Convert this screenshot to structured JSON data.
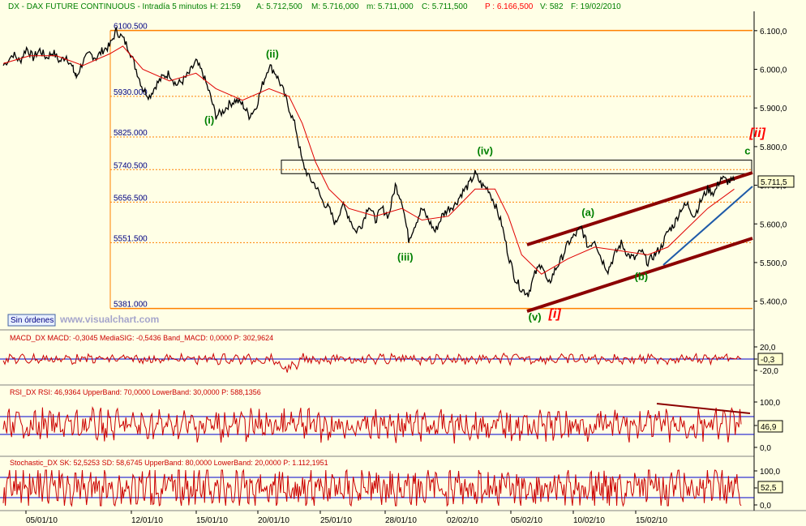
{
  "colors": {
    "background": "#FFFFE6",
    "header_text": "#008000",
    "header_red": "#FF0000",
    "fib_line": "#FF8000",
    "fib_label": "#000080",
    "wave_green": "#008000",
    "wave_red": "#FF0000",
    "channel": "#8B0000",
    "trend_blue": "#1E5AA8",
    "price": "#000000",
    "ma": "#E00000",
    "indicator_line": "#CC0000",
    "band_blue": "#0000CC",
    "last_box_bg": "#FFFFD0"
  },
  "header": {
    "symbol_line": "DX - DAX FUTURE CONTINUOUS - Intradía 5 minutos",
    "time": "H: 21:59",
    "open": "A: 5.712,500",
    "high": "M: 5.716,000",
    "low": "m: 5.711,000",
    "close": "C: 5.711,500",
    "prev": "P : 6.166,500",
    "volume": "V: 582",
    "date": "F: 19/02/2010"
  },
  "orders_label": "Sin órdenes",
  "watermark": "www.visualchart.com",
  "chart_data": [
    {
      "type": "line",
      "name": "price",
      "x": [
        "05/01/10",
        "12/01/10",
        "15/01/10",
        "20/01/10",
        "25/01/10",
        "28/01/10",
        "02/02/10",
        "05/02/10",
        "10/02/10",
        "15/02/10"
      ],
      "ylim": [
        5330,
        6150
      ],
      "y_ticks": [
        "6.100,0",
        "6.000,0",
        "5.900,0",
        "5.800,0",
        "5.700,0",
        "5.600,0",
        "5.500,0",
        "5.400,0"
      ],
      "y_tick_values": [
        6100,
        6000,
        5900,
        5800,
        5700,
        5600,
        5500,
        5400
      ],
      "last_value_label": "5.711,5",
      "last_value": 5711.5,
      "price_path": [
        [
          0,
          6010
        ],
        [
          3,
          6040
        ],
        [
          5,
          6020
        ],
        [
          7,
          6055
        ],
        [
          9,
          6030
        ],
        [
          11,
          6050
        ],
        [
          13,
          6030
        ],
        [
          15,
          6045
        ],
        [
          17,
          6020
        ],
        [
          19,
          6035
        ],
        [
          21,
          6000
        ],
        [
          22,
          5980
        ],
        [
          24,
          6020
        ],
        [
          26,
          6040
        ],
        [
          28,
          6030
        ],
        [
          30,
          6050
        ],
        [
          32,
          6060
        ],
        [
          34,
          6100
        ],
        [
          36,
          6080
        ],
        [
          38,
          6050
        ],
        [
          40,
          6000
        ],
        [
          42,
          5950
        ],
        [
          44,
          5930
        ],
        [
          46,
          5960
        ],
        [
          48,
          5980
        ],
        [
          50,
          5990
        ],
        [
          52,
          5960
        ],
        [
          54,
          5970
        ],
        [
          56,
          5990
        ],
        [
          58,
          6020
        ],
        [
          60,
          5990
        ],
        [
          62,
          5940
        ],
        [
          64,
          5880
        ],
        [
          66,
          5890
        ],
        [
          68,
          5910
        ],
        [
          70,
          5920
        ],
        [
          72,
          5910
        ],
        [
          74,
          5880
        ],
        [
          76,
          5900
        ],
        [
          78,
          5960
        ],
        [
          80,
          6010
        ],
        [
          82,
          5990
        ],
        [
          84,
          5950
        ],
        [
          86,
          5900
        ],
        [
          88,
          5850
        ],
        [
          90,
          5760
        ],
        [
          92,
          5720
        ],
        [
          94,
          5700
        ],
        [
          96,
          5660
        ],
        [
          98,
          5640
        ],
        [
          100,
          5600
        ],
        [
          102,
          5650
        ],
        [
          104,
          5620
        ],
        [
          106,
          5580
        ],
        [
          108,
          5600
        ],
        [
          110,
          5650
        ],
        [
          112,
          5610
        ],
        [
          114,
          5640
        ],
        [
          116,
          5620
        ],
        [
          118,
          5700
        ],
        [
          120,
          5660
        ],
        [
          122,
          5560
        ],
        [
          124,
          5600
        ],
        [
          126,
          5640
        ],
        [
          128,
          5610
        ],
        [
          130,
          5580
        ],
        [
          132,
          5620
        ],
        [
          134,
          5640
        ],
        [
          136,
          5650
        ],
        [
          138,
          5680
        ],
        [
          140,
          5700
        ],
        [
          142,
          5730
        ],
        [
          144,
          5700
        ],
        [
          146,
          5690
        ],
        [
          148,
          5650
        ],
        [
          150,
          5600
        ],
        [
          152,
          5520
        ],
        [
          154,
          5460
        ],
        [
          156,
          5430
        ],
        [
          158,
          5420
        ],
        [
          160,
          5470
        ],
        [
          162,
          5500
        ],
        [
          164,
          5440
        ],
        [
          166,
          5480
        ],
        [
          168,
          5510
        ],
        [
          170,
          5550
        ],
        [
          172,
          5570
        ],
        [
          174,
          5590
        ],
        [
          176,
          5540
        ],
        [
          178,
          5560
        ],
        [
          180,
          5510
        ],
        [
          182,
          5480
        ],
        [
          184,
          5520
        ],
        [
          186,
          5550
        ],
        [
          188,
          5520
        ],
        [
          190,
          5510
        ],
        [
          192,
          5530
        ],
        [
          194,
          5500
        ],
        [
          196,
          5520
        ],
        [
          198,
          5540
        ],
        [
          200,
          5580
        ],
        [
          202,
          5600
        ],
        [
          204,
          5640
        ],
        [
          206,
          5650
        ],
        [
          208,
          5620
        ],
        [
          210,
          5660
        ],
        [
          212,
          5690
        ],
        [
          214,
          5680
        ],
        [
          216,
          5720
        ],
        [
          218,
          5710
        ],
        [
          220,
          5711.5
        ]
      ],
      "ma_path": [
        [
          0,
          6015
        ],
        [
          8,
          6035
        ],
        [
          16,
          6035
        ],
        [
          24,
          6010
        ],
        [
          32,
          6040
        ],
        [
          36,
          6060
        ],
        [
          42,
          6000
        ],
        [
          50,
          5970
        ],
        [
          58,
          5990
        ],
        [
          64,
          5950
        ],
        [
          72,
          5920
        ],
        [
          80,
          5950
        ],
        [
          86,
          5930
        ],
        [
          90,
          5860
        ],
        [
          94,
          5760
        ],
        [
          98,
          5690
        ],
        [
          104,
          5640
        ],
        [
          112,
          5620
        ],
        [
          120,
          5640
        ],
        [
          126,
          5610
        ],
        [
          134,
          5620
        ],
        [
          142,
          5690
        ],
        [
          148,
          5690
        ],
        [
          152,
          5620
        ],
        [
          156,
          5520
        ],
        [
          162,
          5470
        ],
        [
          170,
          5510
        ],
        [
          178,
          5540
        ],
        [
          186,
          5530
        ],
        [
          194,
          5520
        ],
        [
          200,
          5540
        ],
        [
          206,
          5590
        ],
        [
          212,
          5640
        ],
        [
          220,
          5690
        ]
      ],
      "x_max": 220,
      "fib_levels": [
        {
          "label": "6100.500",
          "value": 6100.5
        },
        {
          "label": "5930.000",
          "value": 5930
        },
        {
          "label": "5825.000",
          "value": 5825
        },
        {
          "label": "5740.500",
          "value": 5740.5
        },
        {
          "label": "5656.500",
          "value": 5656.5
        },
        {
          "label": "5551.500",
          "value": 5551.5
        },
        {
          "label": "5381.000",
          "value": 5381
        }
      ],
      "wave_labels": [
        {
          "text": "(i)",
          "x": 62,
          "y": 5860,
          "color": "green"
        },
        {
          "text": "(ii)",
          "x": 81,
          "y": 6030,
          "color": "green"
        },
        {
          "text": "(iii)",
          "x": 121,
          "y": 5505,
          "color": "green"
        },
        {
          "text": "(iv)",
          "x": 145,
          "y": 5780,
          "color": "green"
        },
        {
          "text": "(v)",
          "x": 160,
          "y": 5350,
          "color": "green"
        },
        {
          "text": "[i]",
          "x": 166,
          "y": 5357,
          "color": "red"
        },
        {
          "text": "(a)",
          "x": 176,
          "y": 5620,
          "color": "green"
        },
        {
          "text": "(b)",
          "x": 192,
          "y": 5455,
          "color": "green"
        },
        {
          "text": "c",
          "x": 224,
          "y": 5780,
          "color": "green"
        },
        {
          "text": "[ii]",
          "x": 227,
          "y": 5825,
          "color": "red"
        }
      ]
    },
    {
      "type": "line",
      "name": "MACD_DX",
      "ylim": [
        -30,
        30
      ],
      "y_ticks": [
        "20,0",
        "0,0",
        "-20,0"
      ],
      "last_value_label": "-0,3",
      "values_label": "MACD_DX MACD: -0,3045  MediaSIG: -0,5436  Band_MACD: 0,0000  P: 302,9624"
    },
    {
      "type": "line",
      "name": "RSI_DX",
      "ylim": [
        0,
        110
      ],
      "y_ticks": [
        "100,0",
        "50,0",
        "0,0"
      ],
      "bands": [
        70,
        30
      ],
      "last_value_label": "46,9",
      "values_label": "RSI_DX RSI: 46,9364  UpperBand: 70,0000  LowerBand: 30,0000  P: 588,1356"
    },
    {
      "type": "line",
      "name": "Stochastic_DX",
      "ylim": [
        0,
        110
      ],
      "y_ticks": [
        "100,0",
        "50,0",
        "0,0"
      ],
      "bands": [
        80,
        20
      ],
      "last_value_label": "52,5",
      "values_label": "Stochastic_DX SK: 52,5253  SD: 58,6745  UpperBand: 80,0000  LowerBand: 20,0000  P: 1.112,1951"
    }
  ],
  "date_ticks": [
    "05/01/10",
    "12/01/10",
    "15/01/10",
    "20/01/10",
    "25/01/10",
    "28/01/10",
    "02/02/10",
    "05/02/10",
    "10/02/10",
    "15/02/10"
  ]
}
